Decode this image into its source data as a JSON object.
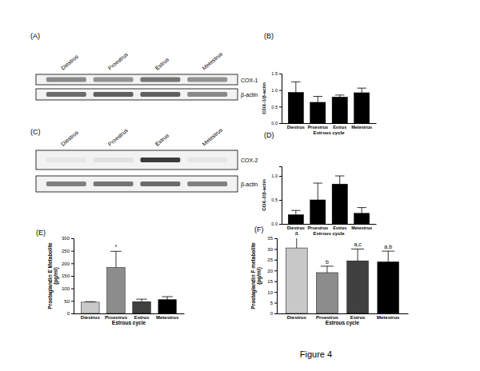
{
  "figure_label": "Figure 4",
  "blots": [
    {
      "panel": "(A)",
      "lanes": [
        "Diestrus",
        "Proestrus",
        "Estrus",
        "Metestrus"
      ],
      "rows": [
        "COX-1",
        "β-actin"
      ]
    },
    {
      "panel": "(C)",
      "lanes": [
        "Diestrus",
        "Proestrus",
        "Estrus",
        "Metestrus"
      ],
      "rows": [
        "COX-2",
        "β-actin"
      ]
    }
  ],
  "chart_data": [
    {
      "type": "bar",
      "panel": "(B)",
      "y_label": [
        "COX-1/β-actin"
      ],
      "x_label": "Estrous cycle",
      "categories": [
        "Diestrus",
        "Proestrus",
        "Estrus",
        "Metestrus"
      ],
      "values": [
        0.93,
        0.63,
        0.79,
        0.92
      ],
      "errors": [
        0.32,
        0.18,
        0.06,
        0.14
      ],
      "color": "#000000",
      "ylim": [
        0,
        1.5
      ],
      "yticks": [
        {
          "value": 0,
          "label": "0.0"
        },
        0.5,
        {
          "value": 1,
          "label": "1.0"
        },
        1.5
      ]
    },
    {
      "type": "bar",
      "panel": "(D)",
      "y_label": [
        "COX-2/β-actin"
      ],
      "x_label": "Estrous cycle",
      "categories": [
        "Diestrus",
        "Proestrus",
        "Estrus",
        "Metestrus"
      ],
      "values": [
        0.19,
        0.5,
        0.83,
        0.22
      ],
      "errors": [
        0.09,
        0.35,
        0.17,
        0.12
      ],
      "color": "#000000",
      "ylim": [
        0,
        1.2
      ],
      "yticks": [
        {
          "value": 0,
          "label": "0.0"
        },
        0.5,
        {
          "value": 1,
          "label": "1.0"
        }
      ]
    },
    {
      "type": "bar",
      "panel": "(E)",
      "y_label": [
        "Prostaglandin E Metabolite",
        "(pg/ml)"
      ],
      "x_label": "Estrous cycle",
      "categories": [
        "Diestrus",
        "Proestrus",
        "Estrus",
        "Metestrus"
      ],
      "values": [
        45,
        183,
        47,
        55
      ],
      "errors": [
        2,
        65,
        10,
        12
      ],
      "colors": [
        "#c8c8c8",
        "#8c8c8c",
        "#404040",
        "#000000"
      ],
      "ylim": [
        0,
        300
      ],
      "yticks": [
        0,
        50,
        100,
        150,
        200,
        250,
        300
      ],
      "bar_labels": [
        null,
        "*",
        null,
        null
      ]
    },
    {
      "type": "bar",
      "panel": "(F)",
      "y_label": [
        "Prostaglandin F metabolite",
        "(pg/ml)"
      ],
      "x_label": "Estrous cycle",
      "categories": [
        "Diestrus",
        "Proestrus",
        "Estrus",
        "Metestrus"
      ],
      "values": [
        30.5,
        19,
        24.5,
        24
      ],
      "errors": [
        5,
        3,
        5.5,
        5
      ],
      "colors": [
        "#c8c8c8",
        "#8c8c8c",
        "#404040",
        "#000000"
      ],
      "ylim": [
        0,
        35
      ],
      "yticks": [
        0,
        5,
        10,
        15,
        20,
        25,
        30,
        35
      ],
      "bar_labels": [
        "a",
        "b",
        "a,c",
        "a,b"
      ]
    }
  ]
}
